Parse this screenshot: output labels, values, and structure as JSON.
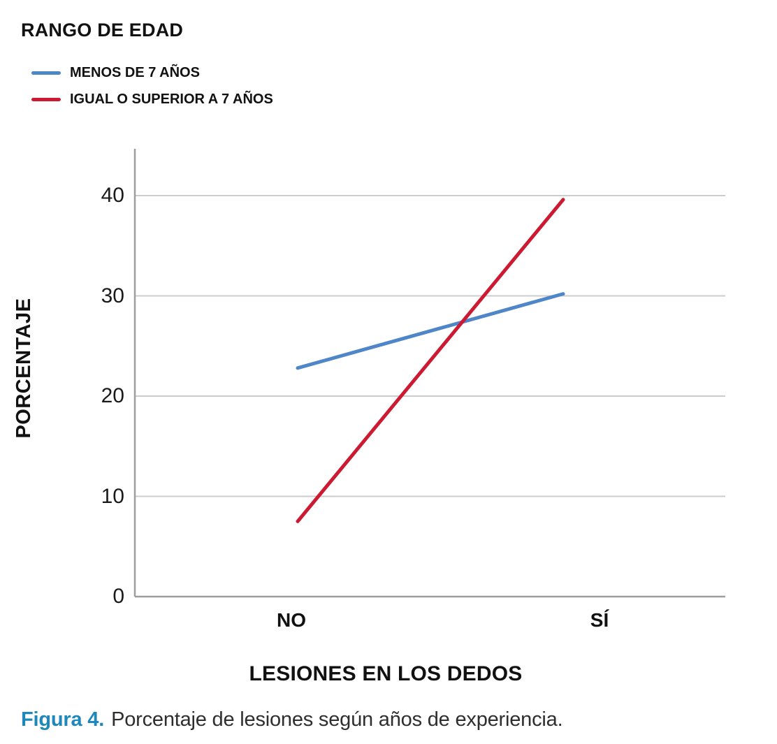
{
  "legend": {
    "title": "RANGO DE EDAD",
    "items": [
      {
        "label": "MENOS DE 7 AÑOS",
        "color": "#4e86c8"
      },
      {
        "label": "IGUAL O SUPERIOR A 7 AÑOS",
        "color": "#cd1a33"
      }
    ]
  },
  "chart_data": {
    "type": "line",
    "title": "RANGO DE EDAD",
    "categories": [
      "NO",
      "SÍ"
    ],
    "series": [
      {
        "name": "MENOS DE 7 AÑOS",
        "color": "#4e86c8",
        "values": [
          22.8,
          30.2
        ]
      },
      {
        "name": "IGUAL O SUPERIOR A 7 AÑOS",
        "color": "#cd1a33",
        "values": [
          7.5,
          39.6
        ]
      }
    ],
    "xlabel": "LESIONES EN LOS DEDOS",
    "ylabel": "PORCENTAJE",
    "ylim": [
      0,
      45
    ],
    "yticks": [
      0,
      10,
      20,
      30,
      40
    ],
    "grid": true,
    "legend_position": "top-left",
    "colors": {
      "grid": "#cccccc",
      "axis": "#9e9e9e",
      "text": "#1a1a1a"
    }
  },
  "caption": {
    "label": "Figura 4.",
    "text": "Porcentaje de lesiones según años de experiencia.",
    "label_color": "#1e87bc"
  }
}
